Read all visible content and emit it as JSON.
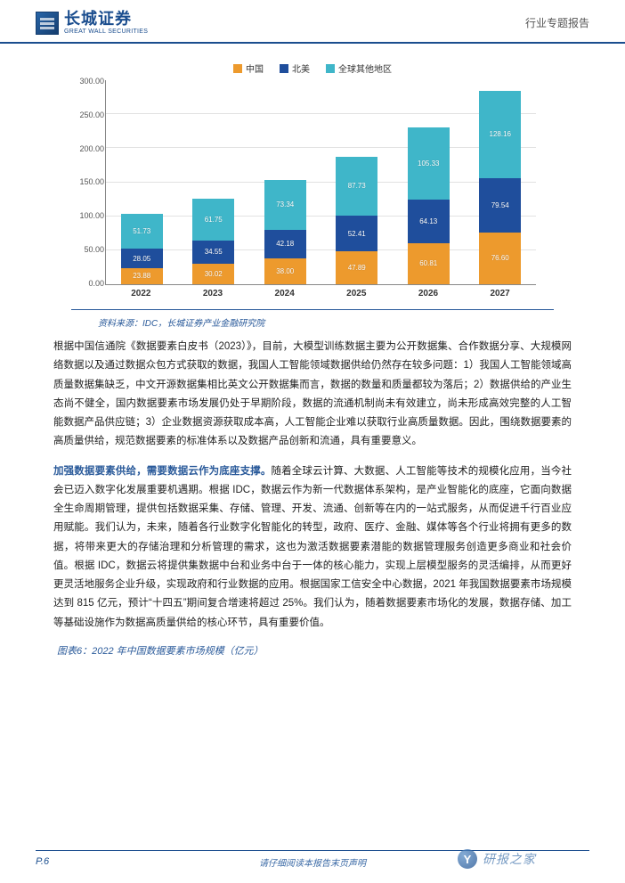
{
  "header": {
    "logo_cn": "长城证券",
    "logo_en": "GREAT WALL SECURITIES",
    "doc_type": "行业专题报告"
  },
  "chart": {
    "type": "stacked-bar",
    "ymax": 300,
    "ytick_step": 50,
    "yticks": [
      "300.00",
      "250.00",
      "200.00",
      "150.00",
      "100.00",
      "50.00",
      "0.00"
    ],
    "categories": [
      "2022",
      "2023",
      "2024",
      "2025",
      "2026",
      "2027"
    ],
    "series": [
      {
        "name": "中国",
        "color": "#ed9a2d",
        "values": [
          23.88,
          30.02,
          38.0,
          47.89,
          60.81,
          76.6
        ]
      },
      {
        "name": "北美",
        "color": "#1f4e9c",
        "values": [
          28.05,
          34.55,
          42.18,
          52.41,
          64.13,
          79.54
        ]
      },
      {
        "name": "全球其他地区",
        "color": "#3fb6c9",
        "values": [
          51.73,
          61.75,
          73.34,
          87.73,
          105.33,
          128.16
        ]
      }
    ],
    "legend_labels": [
      "中国",
      "北美",
      "全球其他地区"
    ],
    "legend_colors": [
      "#ed9a2d",
      "#1f4e9c",
      "#3fb6c9"
    ],
    "background_color": "#ffffff",
    "grid_color": "#e2e2e2",
    "bar_width": 0.7,
    "label_fontsize": 9
  },
  "source": "资料来源：IDC，长城证券产业金融研究院",
  "para1": "根据中国信通院《数据要素白皮书（2023）》，目前，大模型训练数据主要为公开数据集、合作数据分享、大规模网络数据以及通过数据众包方式获取的数据，我国人工智能领域数据供给仍然存在较多问题：1）我国人工智能领域高质量数据集缺乏，中文开源数据集相比英文公开数据集而言，数据的数量和质量都较为落后；2）数据供给的产业生态尚不健全，国内数据要素市场发展仍处于早期阶段，数据的流通机制尚未有效建立，尚未形成高效完整的人工智能数据产品供应链；3）企业数据资源获取成本高，人工智能企业难以获取行业高质量数据。因此，围绕数据要素的高质量供给，规范数据要素的标准体系以及数据产品创新和流通，具有重要意义。",
  "para2_lead": "加强数据要素供给，需要数据云作为底座支撑。",
  "para2_rest": "随着全球云计算、大数据、人工智能等技术的规模化应用，当今社会已迈入数字化发展重要机遇期。根据 IDC，数据云作为新一代数据体系架构，是产业智能化的底座，它面向数据全生命周期管理，提供包括数据采集、存储、管理、开发、流通、创新等在内的一站式服务，从而促进千行百业应用赋能。我们认为，未来，随着各行业数字化智能化的转型，政府、医疗、金融、媒体等各个行业将拥有更多的数据，将带来更大的存储治理和分析管理的需求，这也为激活数据要素潜能的数据管理服务创造更多商业和社会价值。根据 IDC，数据云将提供集数据中台和业务中台于一体的核心能力，实现上层模型服务的灵活编排，从而更好更灵活地服务企业升级，实现政府和行业数据的应用。根据国家工信安全中心数据，2021 年我国数据要素市场规模达到 815 亿元，预计“十四五”期间复合增速将超过 25%。我们认为，随着数据要素市场化的发展，数据存储、加工等基础设施作为数据高质量供给的核心环节，具有重要价值。",
  "fig6_title": "图表6：2022 年中国数据要素市场规模（亿元）",
  "footer": {
    "page": "P.6",
    "disclaimer": "请仔细阅读本报告末页声明",
    "watermark": "研报之家",
    "watermark_icon": "Y"
  }
}
